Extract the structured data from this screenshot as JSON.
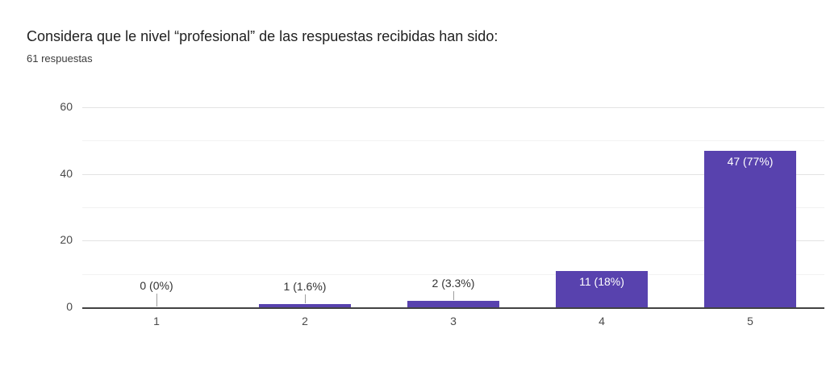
{
  "header": {
    "title": "Considera que le nivel “profesional” de las respuestas recibidas han sido:",
    "subtitle": "61 respuestas"
  },
  "chart_data": {
    "type": "bar",
    "title": "Considera que le nivel “profesional” de las respuestas recibidas han sido:",
    "subtitle": "61 respuestas",
    "categories": [
      "1",
      "2",
      "3",
      "4",
      "5"
    ],
    "values": [
      0,
      1,
      2,
      11,
      47
    ],
    "value_labels": [
      "0 (0%)",
      "1 (1.6%)",
      "2 (3.3%)",
      "11 (18%)",
      "47 (77%)"
    ],
    "label_placement": [
      "above",
      "above",
      "above",
      "inside",
      "inside"
    ],
    "ylim": [
      0,
      60
    ],
    "yticks": [
      0,
      20,
      40,
      60
    ],
    "minor_gridlines": [
      10,
      30,
      50
    ],
    "xlabel": "",
    "ylabel": "",
    "legend": "none",
    "grid": true,
    "colors": {
      "bar": "#5842ae",
      "label_inside": "#ffffff",
      "label_outside": "#333333",
      "axis_line": "#424242",
      "tick_label": "#4a4a4a",
      "gridline_major": "#e3e3e3",
      "gridline_minor": "#f2f2f2",
      "leader_line": "#9e9e9e"
    }
  }
}
